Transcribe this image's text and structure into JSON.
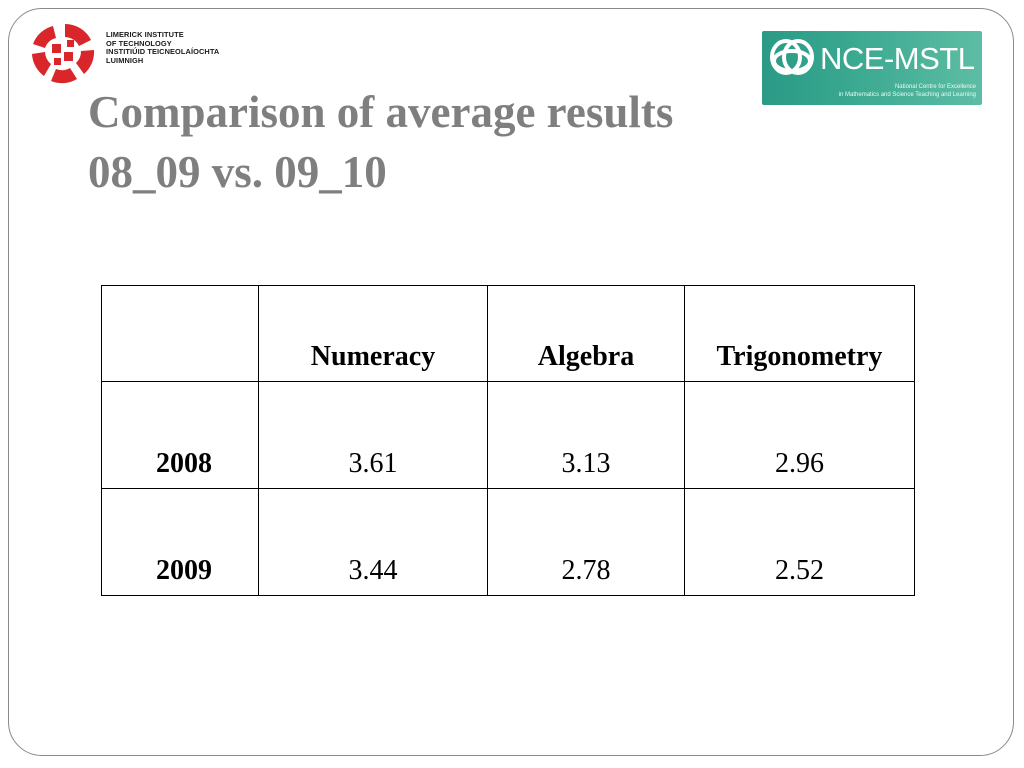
{
  "logos": {
    "lit": {
      "lines": [
        "LIMERICK INSTITUTE",
        "OF TECHNOLOGY",
        "INSTITIÚID TEICNEOLAÍOCHTA",
        "LUIMNIGH"
      ],
      "color": "#d8262b"
    },
    "nce": {
      "name": "NCE-MSTL",
      "subtitle_line1": "National Centre for Excellence",
      "subtitle_line2": "in Mathematics and Science Teaching and Learning",
      "color": "#2f9e88"
    }
  },
  "title": {
    "line1": "Comparison of average results",
    "line2": "08_09 vs. 09_10",
    "color": "#7f7f7f"
  },
  "table": {
    "columns": [
      "",
      "Numeracy",
      "Algebra",
      "Trigonometry"
    ],
    "rows": [
      {
        "label": "2008",
        "values": [
          "3.61",
          "3.13",
          "2.96"
        ]
      },
      {
        "label": "2009",
        "values": [
          "3.44",
          "2.78",
          "2.52"
        ]
      }
    ]
  }
}
